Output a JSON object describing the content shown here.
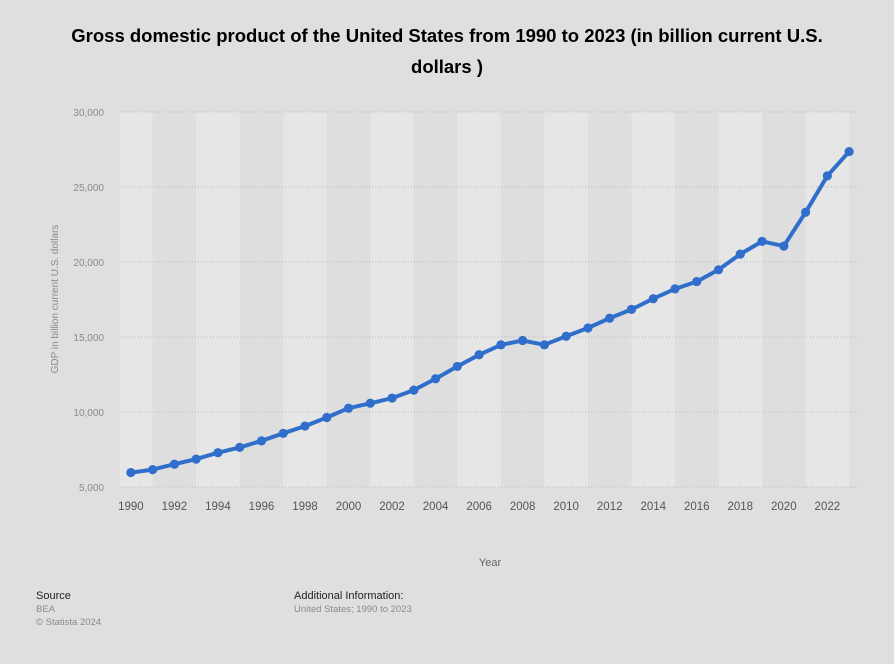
{
  "chart_data": {
    "type": "line",
    "title": "Gross domestic product of the United States from 1990 to 2023 (in billion current U.S. dollars )",
    "xlabel": "Year",
    "ylabel": "GDP in billion current U.S. dollars",
    "ylim": [
      5000,
      30000
    ],
    "yticks": [
      5000,
      10000,
      15000,
      20000,
      25000,
      30000
    ],
    "ytick_labels": [
      "5,000",
      "10,000",
      "15,000",
      "20,000",
      "25,000",
      "30,000"
    ],
    "xtick_labels": [
      "1990",
      "1992",
      "1994",
      "1996",
      "1998",
      "2000",
      "2002",
      "2004",
      "2006",
      "2008",
      "2010",
      "2012",
      "2014",
      "2016",
      "2018",
      "2020",
      "2022"
    ],
    "grid": true,
    "series": [
      {
        "name": "GDP",
        "color": "#2f6fcb",
        "x": [
          1990,
          1991,
          1992,
          1993,
          1994,
          1995,
          1996,
          1997,
          1998,
          1999,
          2000,
          2001,
          2002,
          2003,
          2004,
          2005,
          2006,
          2007,
          2008,
          2009,
          2010,
          2011,
          2012,
          2013,
          2014,
          2015,
          2016,
          2017,
          2018,
          2019,
          2020,
          2021,
          2022,
          2023
        ],
        "values": [
          5963,
          6158,
          6520,
          6859,
          7287,
          7640,
          8073,
          8578,
          9063,
          9631,
          10251,
          10582,
          10929,
          11457,
          12217,
          13039,
          13816,
          14474,
          14770,
          14478,
          15049,
          15600,
          16254,
          16843,
          17551,
          18206,
          18695,
          19480,
          20527,
          21373,
          21060,
          23315,
          25744,
          27361
        ]
      }
    ]
  },
  "footer": {
    "source_heading": "Source",
    "source_lines": [
      "BEA",
      "© Statista 2024"
    ],
    "info_heading": "Additional Information:",
    "info_text": "United States; 1990 to 2023"
  }
}
